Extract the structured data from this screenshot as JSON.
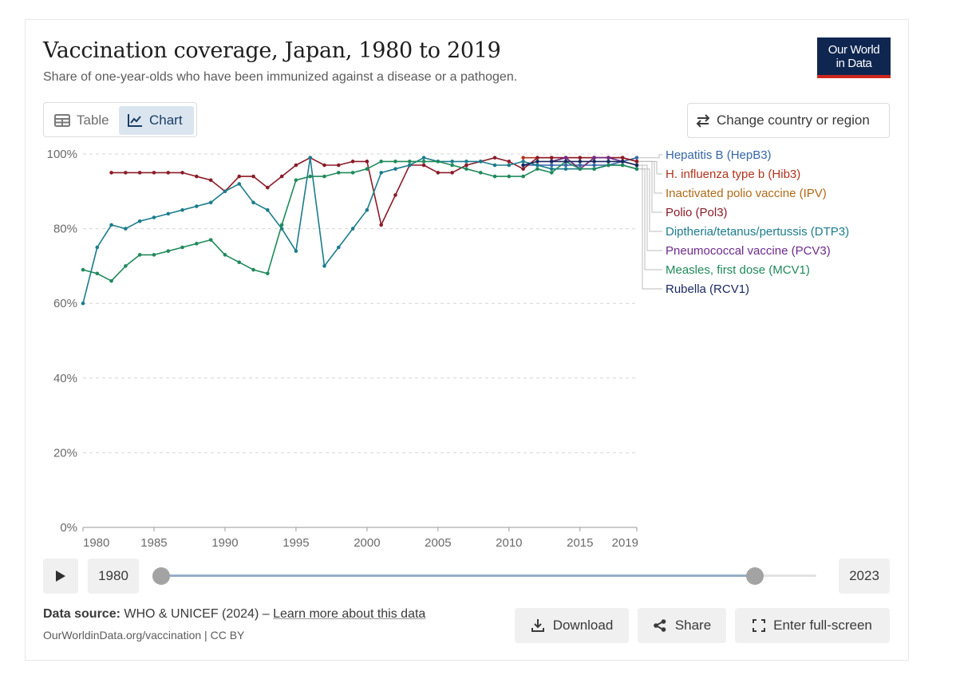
{
  "header": {
    "title": "Vaccination coverage, Japan, 1980 to 2019",
    "subtitle": "Share of one-year-olds who have been immunized against a disease or a pathogen.",
    "logo_line1": "Our World",
    "logo_line2": "in Data"
  },
  "tabs": {
    "table": "Table",
    "chart": "Chart"
  },
  "change_region": "Change country or region",
  "timeline": {
    "start_year": "1980",
    "end_year": "2023",
    "selection_start_year": 1980,
    "selection_end_year": 2019
  },
  "footer": {
    "source_label": "Data source:",
    "source_text": " WHO & UNICEF (2024) – ",
    "source_link": "Learn more about this data",
    "url": "OurWorldinData.org/vaccination | CC BY"
  },
  "actions": {
    "download": "Download",
    "share": "Share",
    "fullscreen": "Enter full-screen"
  },
  "colors": {
    "accent": "#1a3d63",
    "logo_bg": "#0f2650",
    "logo_bar": "#ce261e"
  },
  "chart_data": {
    "type": "line",
    "xlim": [
      1980,
      2019
    ],
    "ylim": [
      0,
      100
    ],
    "y_ticks": [
      0,
      20,
      40,
      60,
      80,
      100
    ],
    "y_tick_labels": [
      "0%",
      "20%",
      "40%",
      "60%",
      "80%",
      "100%"
    ],
    "x_ticks": [
      1980,
      1985,
      1990,
      1995,
      2000,
      2005,
      2010,
      2015,
      2019
    ],
    "x_tick_labels": [
      "1980",
      "1985",
      "1990",
      "1995",
      "2000",
      "2005",
      "2010",
      "2015",
      "2019"
    ],
    "grid": "horizontal dashed",
    "legend_placement": "right",
    "series": [
      {
        "name": "Hepatitis B (HepB3)",
        "color": "#3566a8",
        "points": [
          [
            2011,
            97
          ],
          [
            2012,
            97
          ],
          [
            2013,
            97
          ],
          [
            2014,
            97
          ],
          [
            2015,
            97
          ],
          [
            2016,
            97
          ],
          [
            2017,
            97
          ],
          [
            2018,
            98
          ],
          [
            2019,
            99
          ]
        ]
      },
      {
        "name": "H. influenza type b (Hib3)",
        "color": "#b3321c",
        "points": [
          [
            2011,
            99
          ],
          [
            2012,
            99
          ],
          [
            2013,
            99
          ],
          [
            2014,
            99
          ],
          [
            2015,
            99
          ],
          [
            2016,
            99
          ],
          [
            2017,
            99
          ],
          [
            2018,
            99
          ],
          [
            2019,
            98
          ]
        ]
      },
      {
        "name": "Inactivated polio vaccine (IPV)",
        "color": "#b06a16",
        "points": [
          [
            2013,
            98
          ],
          [
            2014,
            99
          ],
          [
            2015,
            96
          ],
          [
            2016,
            99
          ],
          [
            2017,
            99
          ],
          [
            2018,
            99
          ],
          [
            2019,
            98
          ]
        ]
      },
      {
        "name": "Polio (Pol3)",
        "color": "#8a1b28",
        "points": [
          [
            1982,
            95
          ],
          [
            1983,
            95
          ],
          [
            1984,
            95
          ],
          [
            1985,
            95
          ],
          [
            1986,
            95
          ],
          [
            1987,
            95
          ],
          [
            1988,
            94
          ],
          [
            1989,
            93
          ],
          [
            1990,
            90
          ],
          [
            1991,
            94
          ],
          [
            1992,
            94
          ],
          [
            1993,
            91
          ],
          [
            1994,
            94
          ],
          [
            1995,
            97
          ],
          [
            1996,
            99
          ],
          [
            1997,
            97
          ],
          [
            1998,
            97
          ],
          [
            1999,
            98
          ],
          [
            2000,
            98
          ],
          [
            2001,
            81
          ],
          [
            2002,
            89
          ],
          [
            2003,
            97
          ],
          [
            2004,
            97
          ],
          [
            2005,
            95
          ],
          [
            2006,
            95
          ],
          [
            2007,
            97
          ],
          [
            2008,
            98
          ],
          [
            2009,
            99
          ],
          [
            2010,
            98
          ],
          [
            2011,
            96
          ],
          [
            2012,
            99
          ],
          [
            2013,
            99
          ],
          [
            2014,
            99
          ],
          [
            2015,
            99
          ],
          [
            2016,
            99
          ],
          [
            2017,
            99
          ],
          [
            2018,
            99
          ],
          [
            2019,
            98
          ]
        ]
      },
      {
        "name": "Diptheria/tetanus/pertussis (DTP3)",
        "color": "#1b7c8c",
        "points": [
          [
            1980,
            60
          ],
          [
            1981,
            75
          ],
          [
            1982,
            81
          ],
          [
            1983,
            80
          ],
          [
            1984,
            82
          ],
          [
            1985,
            83
          ],
          [
            1986,
            84
          ],
          [
            1987,
            85
          ],
          [
            1988,
            86
          ],
          [
            1989,
            87
          ],
          [
            1990,
            90
          ],
          [
            1991,
            92
          ],
          [
            1992,
            87
          ],
          [
            1993,
            85
          ],
          [
            1994,
            80
          ],
          [
            1995,
            74
          ],
          [
            1996,
            99
          ],
          [
            1997,
            70
          ],
          [
            1998,
            75
          ],
          [
            1999,
            80
          ],
          [
            2000,
            85
          ],
          [
            2001,
            95
          ],
          [
            2002,
            96
          ],
          [
            2003,
            97
          ],
          [
            2004,
            99
          ],
          [
            2005,
            98
          ],
          [
            2006,
            98
          ],
          [
            2007,
            98
          ],
          [
            2008,
            98
          ],
          [
            2009,
            97
          ],
          [
            2010,
            97
          ],
          [
            2011,
            98
          ],
          [
            2012,
            97
          ],
          [
            2013,
            96
          ],
          [
            2014,
            96
          ],
          [
            2015,
            96
          ],
          [
            2016,
            96
          ],
          [
            2017,
            97
          ],
          [
            2018,
            97
          ],
          [
            2019,
            96
          ]
        ]
      },
      {
        "name": "Pneumococcal vaccine (PCV3)",
        "color": "#6d2b8c",
        "points": [
          [
            2013,
            98
          ],
          [
            2014,
            99
          ],
          [
            2015,
            96
          ],
          [
            2016,
            99
          ],
          [
            2017,
            99
          ],
          [
            2018,
            98
          ],
          [
            2019,
            97
          ]
        ]
      },
      {
        "name": "Measles, first dose (MCV1)",
        "color": "#1f8a5b",
        "points": [
          [
            1980,
            69
          ],
          [
            1981,
            68
          ],
          [
            1982,
            66
          ],
          [
            1983,
            70
          ],
          [
            1984,
            73
          ],
          [
            1985,
            73
          ],
          [
            1986,
            74
          ],
          [
            1987,
            75
          ],
          [
            1988,
            76
          ],
          [
            1989,
            77
          ],
          [
            1990,
            73
          ],
          [
            1991,
            71
          ],
          [
            1992,
            69
          ],
          [
            1993,
            68
          ],
          [
            1994,
            81
          ],
          [
            1995,
            93
          ],
          [
            1996,
            94
          ],
          [
            1997,
            94
          ],
          [
            1998,
            95
          ],
          [
            1999,
            95
          ],
          [
            2000,
            96
          ],
          [
            2001,
            98
          ],
          [
            2002,
            98
          ],
          [
            2003,
            98
          ],
          [
            2004,
            98
          ],
          [
            2005,
            98
          ],
          [
            2006,
            97
          ],
          [
            2007,
            96
          ],
          [
            2008,
            95
          ],
          [
            2009,
            94
          ],
          [
            2010,
            94
          ],
          [
            2011,
            94
          ],
          [
            2012,
            96
          ],
          [
            2013,
            95
          ],
          [
            2014,
            98
          ],
          [
            2015,
            96
          ],
          [
            2016,
            96
          ],
          [
            2017,
            97
          ],
          [
            2018,
            97
          ],
          [
            2019,
            96
          ]
        ]
      },
      {
        "name": "Rubella (RCV1)",
        "color": "#18285e",
        "points": [
          [
            2011,
            97
          ],
          [
            2012,
            98
          ],
          [
            2013,
            98
          ],
          [
            2014,
            98
          ],
          [
            2015,
            98
          ],
          [
            2016,
            98
          ],
          [
            2017,
            98
          ],
          [
            2018,
            98
          ],
          [
            2019,
            97
          ]
        ]
      }
    ]
  }
}
